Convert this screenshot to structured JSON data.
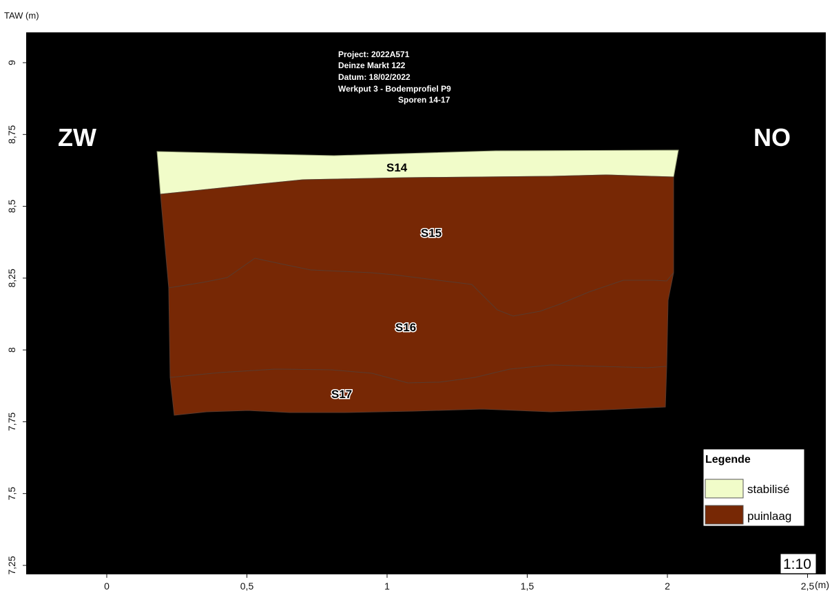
{
  "axes": {
    "y_title": "TAW (m)",
    "x_unit": "(m)",
    "x_ticks": [
      {
        "value": 0,
        "label": "0"
      },
      {
        "value": 0.5,
        "label": "0,5"
      },
      {
        "value": 1,
        "label": "1"
      },
      {
        "value": 1.5,
        "label": "1,5"
      },
      {
        "value": 2,
        "label": "2"
      },
      {
        "value": 2.5,
        "label": "2,5"
      }
    ],
    "y_ticks": [
      {
        "value": 9,
        "label": "9"
      },
      {
        "value": 8.75,
        "label": "8,75"
      },
      {
        "value": 8.5,
        "label": "8,5"
      },
      {
        "value": 8.25,
        "label": "8,25"
      },
      {
        "value": 8,
        "label": "8"
      },
      {
        "value": 7.75,
        "label": "7,75"
      },
      {
        "value": 7.5,
        "label": "7,5"
      },
      {
        "value": 7.25,
        "label": "7,25"
      }
    ]
  },
  "project_info": [
    "Project: 2022A571",
    "Deinze Markt 122",
    "Datum: 18/02/2022",
    "Werkput 3 - Bodemprofiel P9",
    "Sporen 14-17"
  ],
  "orientation": {
    "left": "ZW",
    "right": "NO"
  },
  "colors": {
    "background": "#000000",
    "stabilise": "#f1fcc9",
    "puinlaag": "#772805",
    "boundary": "#5b3a2c"
  },
  "layers": [
    {
      "id": "S14",
      "label": "S14",
      "type": "stabilise"
    },
    {
      "id": "S15",
      "label": "S15",
      "type": "puinlaag"
    },
    {
      "id": "S16",
      "label": "S16",
      "type": "puinlaag"
    },
    {
      "id": "S17",
      "label": "S17",
      "type": "puinlaag"
    }
  ],
  "legend": {
    "title": "Legende",
    "items": [
      {
        "label": "stabilisé",
        "type": "stabilise"
      },
      {
        "label": "puinlaag",
        "type": "puinlaag"
      }
    ]
  },
  "scale": "1:10"
}
